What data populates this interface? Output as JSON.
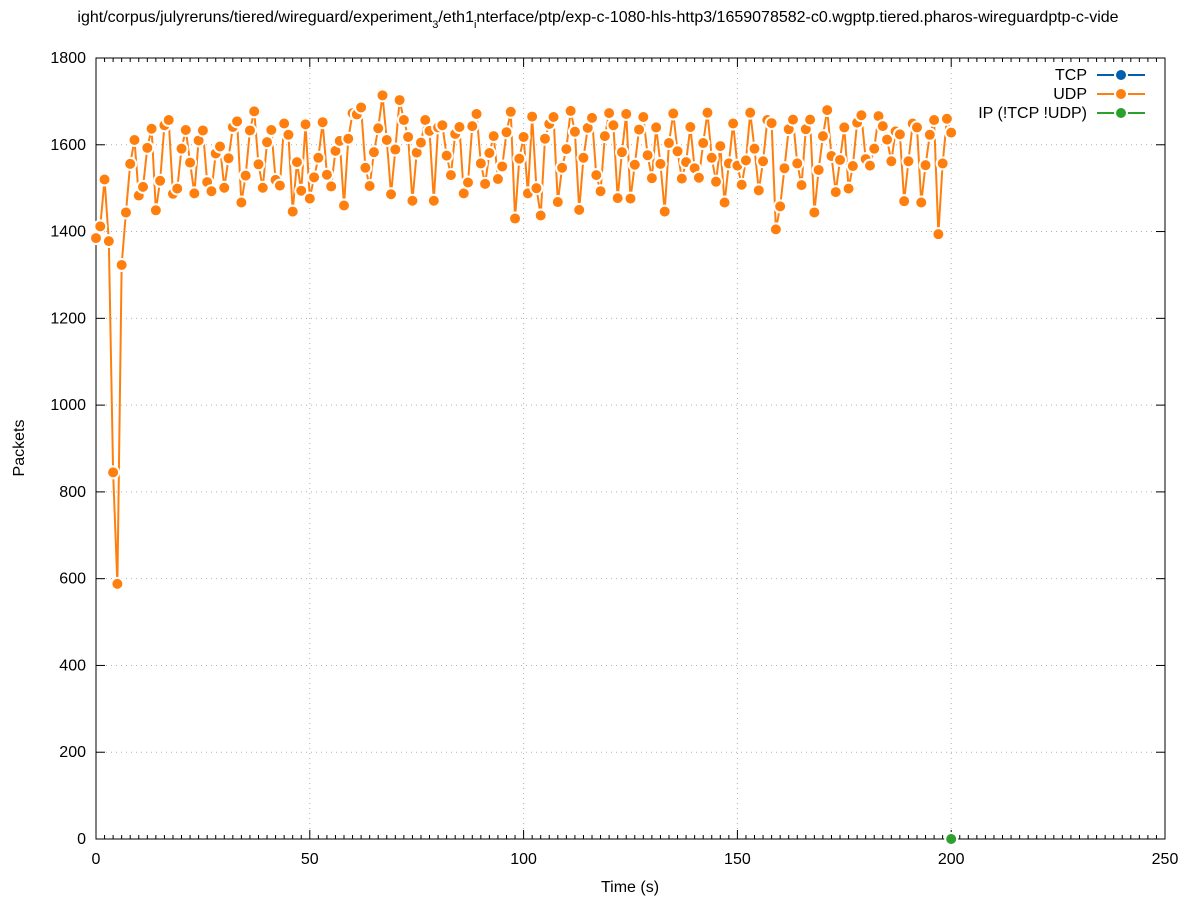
{
  "chart_data": {
    "type": "line",
    "title": "ight/corpus/julyreruns/tiered/wireguard/experiment_3/eth1_interface/ptp/exp-c-1080-hls-http3/1659078582-c0.wgptp.tiered.pharos-wireguardptp-c-vide",
    "title_parts": {
      "p1": "ight/corpus/julyreruns/tiered/wireguard/experiment",
      "sub1": "3",
      "p2": "/eth1",
      "sub2": "i",
      "p3": "nterface/ptp/exp-c-1080-hls-http3/1659078582-c0.wgptp.tiered.pharos-wireguardptp-c-vide"
    },
    "xlabel": "Time (s)",
    "ylabel": "Packets",
    "xlim": [
      0,
      250
    ],
    "ylim": [
      0,
      1800
    ],
    "xticks": [
      0,
      50,
      100,
      150,
      200,
      250
    ],
    "yticks": [
      0,
      200,
      400,
      600,
      800,
      1000,
      1200,
      1400,
      1600,
      1800
    ],
    "grid": true,
    "legend_position": "top-right",
    "series": [
      {
        "name": "TCP",
        "color": "#0060ad",
        "x": [],
        "y": []
      },
      {
        "name": "UDP",
        "color": "#ff7f0e",
        "x": [
          0,
          1,
          2,
          3,
          4,
          5,
          6,
          7,
          8,
          9,
          10,
          11,
          12,
          13,
          14,
          15,
          16,
          17,
          18,
          19,
          20,
          21,
          22,
          23,
          24,
          25,
          26,
          27,
          28,
          29,
          30,
          31,
          32,
          33,
          34,
          35,
          36,
          37,
          38,
          39,
          40,
          41,
          42,
          43,
          44,
          45,
          46,
          47,
          48,
          49,
          50,
          51,
          52,
          53,
          54,
          55,
          56,
          57,
          58,
          59,
          60,
          61,
          62,
          63,
          64,
          65,
          66,
          67,
          68,
          69,
          70,
          71,
          72,
          73,
          74,
          75,
          76,
          77,
          78,
          79,
          80,
          81,
          82,
          83,
          84,
          85,
          86,
          87,
          88,
          89,
          90,
          91,
          92,
          93,
          94,
          95,
          96,
          97,
          98,
          99,
          100,
          101,
          102,
          103,
          104,
          105,
          106,
          107,
          108,
          109,
          110,
          111,
          112,
          113,
          114,
          115,
          116,
          117,
          118,
          119,
          120,
          121,
          122,
          123,
          124,
          125,
          126,
          127,
          128,
          129,
          130,
          131,
          132,
          133,
          134,
          135,
          136,
          137,
          138,
          139,
          140,
          141,
          142,
          143,
          144,
          145,
          146,
          147,
          148,
          149,
          150,
          151,
          152,
          153,
          154,
          155,
          156,
          157,
          158,
          159,
          160,
          161,
          162,
          163,
          164,
          165,
          166,
          167,
          168,
          169,
          170,
          171,
          172,
          173,
          174,
          175,
          176,
          177,
          178,
          179,
          180,
          181,
          182,
          183,
          184,
          185,
          186,
          187,
          188,
          189,
          190,
          191,
          192,
          193,
          194,
          195,
          196,
          197,
          198,
          199,
          200
        ],
        "y": [
          1385,
          1412,
          1520,
          1378,
          845,
          588,
          1323,
          1444,
          1556,
          1611,
          1483,
          1503,
          1593,
          1637,
          1449,
          1517,
          1645,
          1657,
          1487,
          1499,
          1591,
          1634,
          1559,
          1488,
          1610,
          1633,
          1514,
          1493,
          1580,
          1596,
          1501,
          1569,
          1641,
          1654,
          1467,
          1529,
          1633,
          1677,
          1555,
          1501,
          1606,
          1634,
          1519,
          1506,
          1649,
          1623,
          1446,
          1560,
          1494,
          1647,
          1476,
          1525,
          1570,
          1652,
          1531,
          1504,
          1586,
          1609,
          1460,
          1614,
          1673,
          1670,
          1686,
          1547,
          1505,
          1583,
          1638,
          1714,
          1611,
          1486,
          1589,
          1703,
          1657,
          1618,
          1471,
          1582,
          1605,
          1657,
          1632,
          1471,
          1640,
          1645,
          1575,
          1530,
          1625,
          1641,
          1488,
          1513,
          1643,
          1671,
          1557,
          1510,
          1581,
          1620,
          1521,
          1550,
          1629,
          1676,
          1430,
          1568,
          1618,
          1488,
          1665,
          1500,
          1437,
          1614,
          1648,
          1664,
          1468,
          1547,
          1590,
          1678,
          1630,
          1450,
          1570,
          1639,
          1662,
          1530,
          1493,
          1620,
          1673,
          1645,
          1477,
          1583,
          1671,
          1476,
          1554,
          1635,
          1664,
          1576,
          1523,
          1640,
          1556,
          1446,
          1604,
          1672,
          1585,
          1522,
          1560,
          1641,
          1546,
          1524,
          1604,
          1674,
          1570,
          1515,
          1597,
          1467,
          1557,
          1649,
          1552,
          1508,
          1564,
          1674,
          1591,
          1495,
          1562,
          1657,
          1650,
          1405,
          1458,
          1546,
          1636,
          1658,
          1557,
          1507,
          1636,
          1658,
          1444,
          1542,
          1620,
          1680,
          1574,
          1491,
          1565,
          1640,
          1499,
          1551,
          1651,
          1668,
          1567,
          1552,
          1591,
          1666,
          1643,
          1612,
          1562,
          1631,
          1624,
          1470,
          1562,
          1649,
          1640,
          1467,
          1553,
          1623,
          1657,
          1394,
          1557,
          1660,
          1628
        ]
      },
      {
        "name": "IP (!TCP  !UDP)",
        "color": "#2ca02c",
        "x": [
          200
        ],
        "y": [
          0
        ]
      }
    ]
  }
}
